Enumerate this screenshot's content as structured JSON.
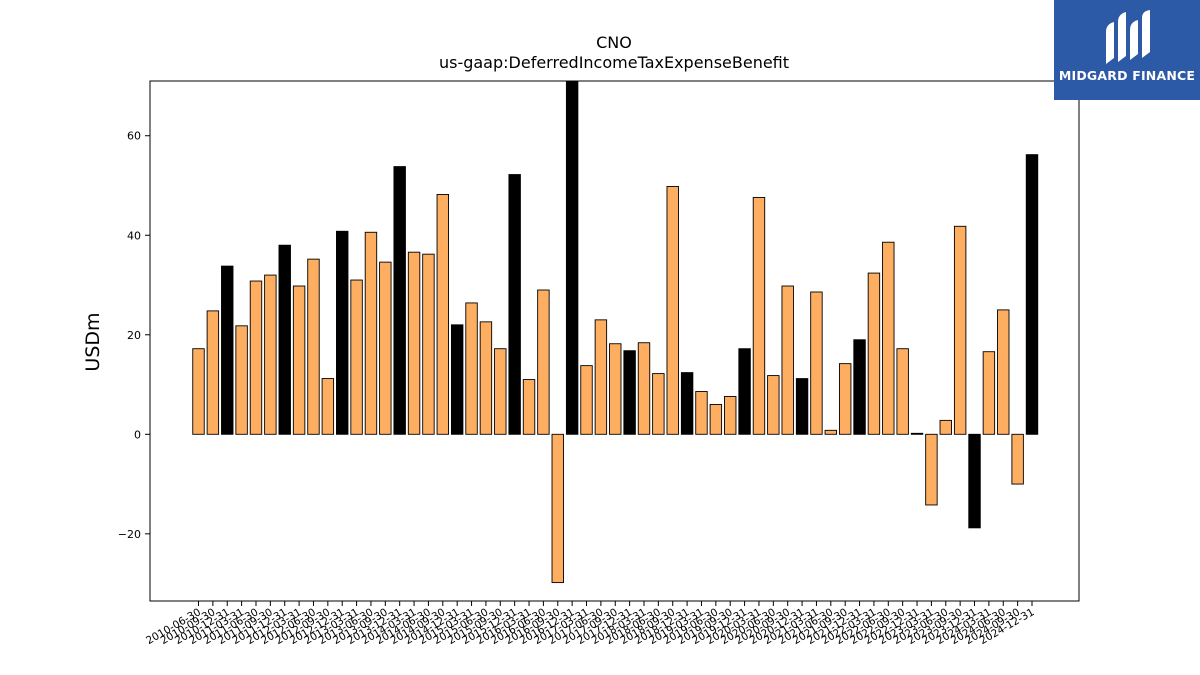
{
  "brand": {
    "name": "MIDGARD FINANCE",
    "bg_color": "#2d5aa6",
    "mark_icon": "midgard-logo-icon"
  },
  "chart_data": {
    "type": "bar",
    "title": "CNO",
    "subtitle": "us-gaap:DeferredIncomeTaxExpenseBenefit",
    "xlabel": "",
    "ylabel": "USDm",
    "ylim": [
      -33.5,
      71
    ],
    "yticks": [
      -20,
      0,
      20,
      40,
      60
    ],
    "grid": false,
    "legend": "none",
    "colors": {
      "quarter": "#fdae61",
      "year_end": "#000000",
      "edge": "#000000"
    },
    "categories": [
      "2010-06-30",
      "2010-09-30",
      "2010-12-31",
      "2011-03-31",
      "2011-06-30",
      "2011-09-30",
      "2011-12-31",
      "2012-03-31",
      "2012-06-30",
      "2012-09-30",
      "2012-12-31",
      "2013-03-31",
      "2013-06-30",
      "2013-09-30",
      "2013-12-31",
      "2014-03-31",
      "2014-06-30",
      "2014-09-30",
      "2014-12-31",
      "2015-03-31",
      "2015-06-30",
      "2015-09-30",
      "2015-12-31",
      "2016-03-31",
      "2016-06-30",
      "2016-09-30",
      "2016-12-31",
      "2017-03-31",
      "2017-06-30",
      "2017-09-30",
      "2017-12-31",
      "2018-03-31",
      "2018-06-30",
      "2018-09-30",
      "2018-12-31",
      "2019-03-31",
      "2019-06-30",
      "2019-09-30",
      "2019-12-31",
      "2020-03-31",
      "2020-06-30",
      "2020-09-30",
      "2020-12-31",
      "2021-03-31",
      "2021-06-30",
      "2021-09-30",
      "2021-12-31",
      "2022-03-31",
      "2022-06-30",
      "2022-09-30",
      "2022-12-31",
      "2023-03-31",
      "2023-06-30",
      "2023-09-30",
      "2023-12-31",
      "2024-03-31",
      "2024-06-30",
      "2024-09-30",
      "2024-12-31"
    ],
    "values": [
      17.2,
      24.8,
      33.8,
      21.8,
      30.8,
      32.0,
      38.0,
      29.8,
      35.2,
      11.2,
      40.8,
      31.0,
      40.6,
      34.6,
      53.8,
      36.6,
      36.2,
      48.2,
      22.0,
      26.4,
      22.6,
      17.2,
      52.2,
      11.0,
      29.0,
      -29.8,
      71.0,
      13.8,
      23.0,
      18.2,
      16.8,
      18.4,
      12.2,
      49.8,
      12.4,
      8.6,
      6.0,
      7.6,
      17.2,
      47.6,
      11.8,
      29.8,
      11.2,
      28.6,
      0.8,
      14.2,
      19.0,
      32.4,
      38.6,
      17.2,
      0.2,
      -14.2,
      2.8,
      41.8,
      -18.8,
      16.6,
      25.0,
      -10.0,
      56.2
    ],
    "year_end_flags": [
      0,
      0,
      1,
      0,
      0,
      0,
      1,
      0,
      0,
      0,
      1,
      0,
      0,
      0,
      1,
      0,
      0,
      0,
      1,
      0,
      0,
      0,
      1,
      0,
      0,
      0,
      1,
      0,
      0,
      0,
      1,
      0,
      0,
      0,
      1,
      0,
      0,
      0,
      1,
      0,
      0,
      0,
      1,
      0,
      0,
      0,
      1,
      0,
      0,
      0,
      1,
      0,
      0,
      0,
      1,
      0,
      0,
      0,
      1
    ]
  }
}
